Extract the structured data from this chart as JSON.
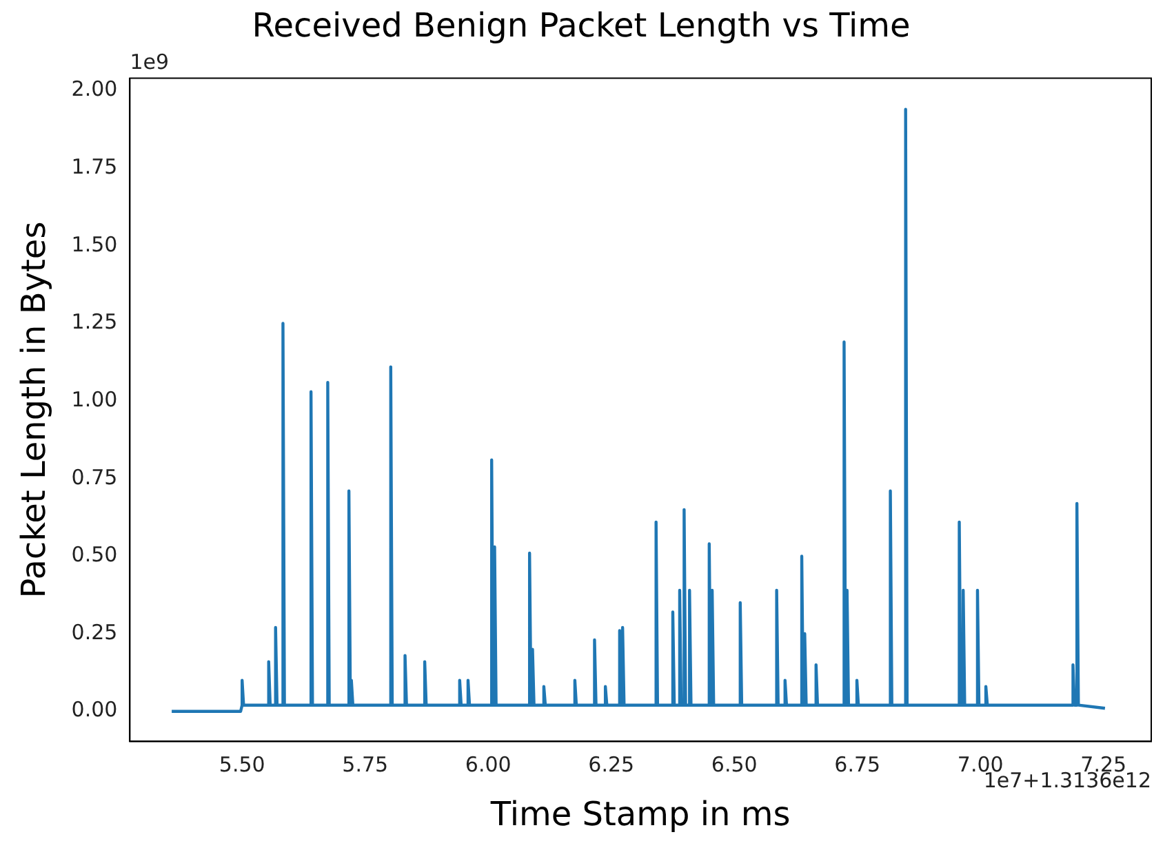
{
  "chart_data": {
    "type": "line",
    "title": "Received Benign Packet Length vs Time",
    "xlabel": "Time Stamp in ms",
    "ylabel": "Packet Length in Bytes",
    "annotations": [
      "1e9",
      "1e7+1.3136e12"
    ],
    "x": [
      5.357,
      5.497,
      5.5,
      5.5,
      5.503,
      5.554,
      5.554,
      5.557,
      5.568,
      5.568,
      5.571,
      5.583,
      5.583,
      5.586,
      5.64,
      5.64,
      5.643,
      5.674,
      5.674,
      5.677,
      5.717,
      5.717,
      5.72,
      5.722,
      5.722,
      5.725,
      5.802,
      5.802,
      5.805,
      5.831,
      5.831,
      5.834,
      5.871,
      5.871,
      5.874,
      5.942,
      5.942,
      5.945,
      5.959,
      5.959,
      5.962,
      6.007,
      6.007,
      6.01,
      6.013,
      6.013,
      6.016,
      6.084,
      6.084,
      6.087,
      6.09,
      6.09,
      6.093,
      6.113,
      6.113,
      6.116,
      6.176,
      6.176,
      6.179,
      6.216,
      6.216,
      6.219,
      6.238,
      6.238,
      6.241,
      6.267,
      6.267,
      6.27,
      6.273,
      6.273,
      6.276,
      6.341,
      6.341,
      6.344,
      6.375,
      6.375,
      6.378,
      6.389,
      6.389,
      6.392,
      6.398,
      6.398,
      6.401,
      6.409,
      6.409,
      6.412,
      6.449,
      6.449,
      6.452,
      6.455,
      6.455,
      6.458,
      6.512,
      6.512,
      6.515,
      6.586,
      6.586,
      6.589,
      6.603,
      6.603,
      6.606,
      6.637,
      6.637,
      6.64,
      6.643,
      6.643,
      6.646,
      6.666,
      6.666,
      6.669,
      6.723,
      6.723,
      6.726,
      6.729,
      6.729,
      6.732,
      6.749,
      6.749,
      6.752,
      6.817,
      6.817,
      6.82,
      6.848,
      6.848,
      6.851,
      6.957,
      6.957,
      6.96,
      6.965,
      6.965,
      6.968,
      6.994,
      6.994,
      6.997,
      7.011,
      7.011,
      7.014,
      7.188,
      7.188,
      7.191,
      7.196,
      7.196,
      7.199,
      7.253
    ],
    "series": [
      {
        "color": "#1f77b4",
        "values": [
          0,
          0,
          0.02,
          0.1,
          0.02,
          0.02,
          0.16,
          0.02,
          0.02,
          0.27,
          0.02,
          0.02,
          1.25,
          0.02,
          0.02,
          1.03,
          0.02,
          0.02,
          1.06,
          0.02,
          0.02,
          0.71,
          0.02,
          0.02,
          0.1,
          0.02,
          0.02,
          1.11,
          0.02,
          0.02,
          0.18,
          0.02,
          0.02,
          0.16,
          0.02,
          0.02,
          0.1,
          0.02,
          0.02,
          0.1,
          0.02,
          0.02,
          0.81,
          0.02,
          0.02,
          0.53,
          0.02,
          0.02,
          0.51,
          0.02,
          0.02,
          0.2,
          0.02,
          0.02,
          0.08,
          0.02,
          0.02,
          0.1,
          0.02,
          0.02,
          0.23,
          0.02,
          0.02,
          0.08,
          0.02,
          0.02,
          0.26,
          0.02,
          0.02,
          0.27,
          0.02,
          0.02,
          0.61,
          0.02,
          0.02,
          0.32,
          0.02,
          0.02,
          0.39,
          0.02,
          0.02,
          0.65,
          0.02,
          0.02,
          0.39,
          0.02,
          0.02,
          0.54,
          0.02,
          0.02,
          0.39,
          0.02,
          0.02,
          0.35,
          0.02,
          0.02,
          0.39,
          0.02,
          0.02,
          0.1,
          0.02,
          0.02,
          0.5,
          0.02,
          0.02,
          0.25,
          0.02,
          0.02,
          0.15,
          0.02,
          0.02,
          1.19,
          0.02,
          0.02,
          0.39,
          0.02,
          0.02,
          0.1,
          0.02,
          0.02,
          0.71,
          0.02,
          0.02,
          1.94,
          0.02,
          0.02,
          0.61,
          0.02,
          0.02,
          0.39,
          0.02,
          0.02,
          0.39,
          0.02,
          0.02,
          0.08,
          0.02,
          0.02,
          0.15,
          0.02,
          0.02,
          0.67,
          0.02,
          0.01
        ]
      }
    ],
    "xlim": [
      5.272,
      7.347
    ],
    "ylim": [
      -0.097,
      2.04
    ],
    "xticks": [
      {
        "value": 5.5,
        "label": "5.50"
      },
      {
        "value": 5.75,
        "label": "5.75"
      },
      {
        "value": 6,
        "label": "6.00"
      },
      {
        "value": 6.25,
        "label": "6.25"
      },
      {
        "value": 6.5,
        "label": "6.50"
      },
      {
        "value": 6.75,
        "label": "6.75"
      },
      {
        "value": 7,
        "label": "7.00"
      },
      {
        "value": 7.25,
        "label": "7.25"
      }
    ],
    "yticks": [
      {
        "value": 0,
        "label": "0.00"
      },
      {
        "value": 0.25,
        "label": "0.25"
      },
      {
        "value": 0.5,
        "label": "0.50"
      },
      {
        "value": 0.75,
        "label": "0.75"
      },
      {
        "value": 1,
        "label": "1.00"
      },
      {
        "value": 1.25,
        "label": "1.25"
      },
      {
        "value": 1.5,
        "label": "1.50"
      },
      {
        "value": 1.75,
        "label": "1.75"
      },
      {
        "value": 2,
        "label": "2.00"
      }
    ],
    "grid": false,
    "legend": false,
    "marker": "none",
    "line_style": "solid"
  }
}
